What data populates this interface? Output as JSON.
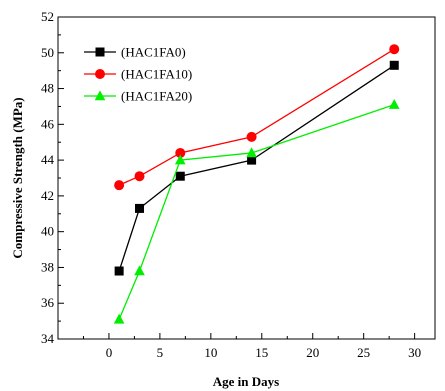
{
  "chart_data": {
    "type": "line",
    "xlabel": "Age in Days",
    "ylabel": "Compressive Strength (MPa)",
    "xlim": [
      -5,
      32
    ],
    "ylim": [
      34,
      52
    ],
    "x_ticks": [
      0,
      5,
      10,
      15,
      20,
      25,
      30
    ],
    "y_ticks": [
      34,
      36,
      38,
      40,
      42,
      44,
      46,
      48,
      50,
      52
    ],
    "legend_position": "top-left",
    "grid": false,
    "series": [
      {
        "name": "(HAC1FA0)",
        "color": "#000000",
        "marker": "square",
        "x": [
          1,
          3,
          7,
          14,
          28
        ],
        "y": [
          37.8,
          41.3,
          43.1,
          44.0,
          49.3
        ]
      },
      {
        "name": "(HAC1FA10)",
        "color": "#ff0000",
        "marker": "circle",
        "x": [
          1,
          3,
          7,
          14,
          28
        ],
        "y": [
          42.6,
          43.1,
          44.4,
          45.3,
          50.2
        ]
      },
      {
        "name": "(HAC1FA20)",
        "color": "#00ee00",
        "marker": "triangle",
        "x": [
          1,
          3,
          7,
          14,
          28
        ],
        "y": [
          35.1,
          37.8,
          44.0,
          44.4,
          47.1
        ]
      }
    ]
  }
}
